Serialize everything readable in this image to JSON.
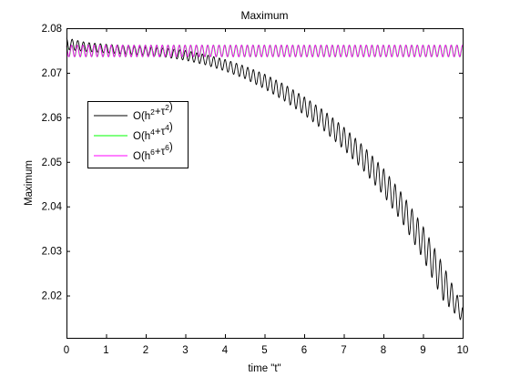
{
  "chart_data": {
    "type": "line",
    "title": "Maximum",
    "xlabel": "time \"t\"",
    "ylabel": "Maximum",
    "xlim": [
      0,
      10
    ],
    "ylim": [
      2.0105,
      2.08
    ],
    "x_ticks": [
      0,
      1,
      2,
      3,
      4,
      5,
      6,
      7,
      8,
      9,
      10
    ],
    "x_tick_labels": [
      "0",
      "1",
      "2",
      "3",
      "4",
      "5",
      "6",
      "7",
      "8",
      "9",
      "10"
    ],
    "y_ticks": [
      2.02,
      2.03,
      2.04,
      2.05,
      2.06,
      2.07,
      2.08
    ],
    "y_tick_labels": [
      "2.02",
      "2.03",
      "2.04",
      "2.05",
      "2.06",
      "2.07",
      "2.08"
    ],
    "grid": false,
    "legend_position": "upper-left",
    "x": [
      0,
      0.5,
      1,
      1.5,
      2,
      2.5,
      3,
      3.5,
      4,
      4.5,
      5,
      5.5,
      6,
      6.5,
      7,
      7.5,
      8,
      8.5,
      9,
      9.5,
      10
    ],
    "oscillation_period": 0.143,
    "series": [
      {
        "name": "O(h²+τ²)",
        "color": "#000000",
        "upper_envelope": [
          2.0778,
          2.0768,
          2.0764,
          2.0761,
          2.0758,
          2.0755,
          2.075,
          2.0741,
          2.073,
          2.0715,
          2.0697,
          2.0674,
          2.0646,
          2.0615,
          2.0578,
          2.0535,
          2.0485,
          2.0425,
          2.0355,
          2.027,
          2.0175
        ],
        "lower_envelope": [
          2.0752,
          2.0748,
          2.0745,
          2.0742,
          2.0739,
          2.0735,
          2.0728,
          2.0718,
          2.0704,
          2.0687,
          2.0664,
          2.0637,
          2.0606,
          2.057,
          2.0528,
          2.048,
          2.0425,
          2.036,
          2.0282,
          2.019,
          2.014
        ]
      },
      {
        "name": "O(h⁴+τ⁴)",
        "color": "#00ff00",
        "upper_envelope": [
          2.0762,
          2.0762,
          2.0762,
          2.0762,
          2.0762,
          2.0762,
          2.0762,
          2.0762,
          2.0762,
          2.0762,
          2.0762,
          2.0762,
          2.0762,
          2.0762,
          2.0762,
          2.0762,
          2.0762,
          2.0762,
          2.0762,
          2.0762,
          2.0762
        ],
        "lower_envelope": [
          2.0736,
          2.0736,
          2.0736,
          2.0736,
          2.0736,
          2.0736,
          2.0736,
          2.0736,
          2.0736,
          2.0736,
          2.0736,
          2.0736,
          2.0736,
          2.0736,
          2.0736,
          2.0736,
          2.0736,
          2.0736,
          2.0736,
          2.0736,
          2.0736
        ]
      },
      {
        "name": "O(h⁶+τ⁶)",
        "color": "#ff00ff",
        "upper_envelope": [
          2.0762,
          2.0762,
          2.0762,
          2.0762,
          2.0762,
          2.0762,
          2.0762,
          2.0762,
          2.0762,
          2.0762,
          2.0762,
          2.0762,
          2.0762,
          2.0762,
          2.0762,
          2.0762,
          2.0762,
          2.0762,
          2.0762,
          2.0762,
          2.0762
        ],
        "lower_envelope": [
          2.0736,
          2.0736,
          2.0736,
          2.0736,
          2.0736,
          2.0736,
          2.0736,
          2.0736,
          2.0736,
          2.0736,
          2.0736,
          2.0736,
          2.0736,
          2.0736,
          2.0736,
          2.0736,
          2.0736,
          2.0736,
          2.0736,
          2.0736,
          2.0736
        ]
      }
    ],
    "legend": {
      "entries": [
        {
          "base": "O(h",
          "exp1": "2",
          "mid": "+τ",
          "exp2": "2",
          "end": ")",
          "color": "#000000"
        },
        {
          "base": "O(h",
          "exp1": "4",
          "mid": "+τ",
          "exp2": "4",
          "end": ")",
          "color": "#00ff00"
        },
        {
          "base": "O(h",
          "exp1": "6",
          "mid": "+τ",
          "exp2": "6",
          "end": ")",
          "color": "#ff00ff"
        }
      ]
    }
  }
}
